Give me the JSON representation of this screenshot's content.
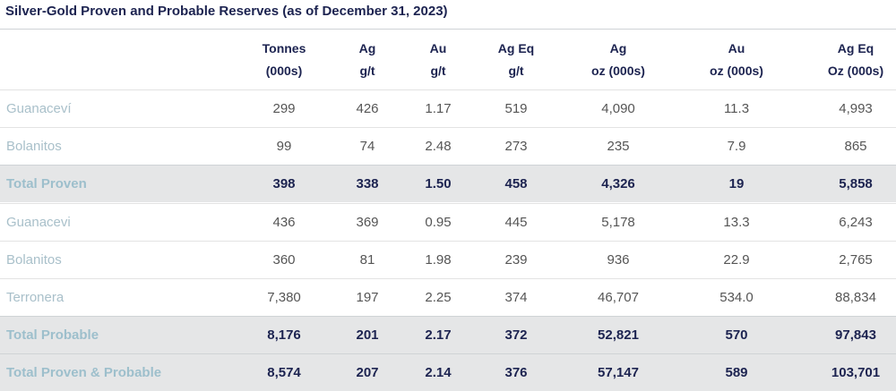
{
  "title": "Silver-Gold Proven and Probable Reserves (as of December 31, 2023)",
  "table": {
    "header": [
      [
        "Tonnes",
        "(000s)"
      ],
      [
        "Ag",
        "g/t"
      ],
      [
        "Au",
        "g/t"
      ],
      [
        "Ag Eq",
        "g/t"
      ],
      [
        "Ag",
        "oz (000s)"
      ],
      [
        "Au",
        "oz (000s)"
      ],
      [
        "Ag Eq",
        "Oz (000s)"
      ]
    ],
    "rows": [
      {
        "label": "Guanaceví",
        "total": false,
        "cells": [
          "299",
          "426",
          "1.17",
          "519",
          "4,090",
          "11.3",
          "4,993"
        ]
      },
      {
        "label": "Bolanitos",
        "total": false,
        "cells": [
          "99",
          "74",
          "2.48",
          "273",
          "235",
          "7.9",
          "865"
        ]
      },
      {
        "label": "Total Proven",
        "total": true,
        "cells": [
          "398",
          "338",
          "1.50",
          "458",
          "4,326",
          "19",
          "5,858"
        ]
      },
      {
        "label": "Guanacevi",
        "total": false,
        "cells": [
          "436",
          "369",
          "0.95",
          "445",
          "5,178",
          "13.3",
          "6,243"
        ]
      },
      {
        "label": "Bolanitos",
        "total": false,
        "cells": [
          "360",
          "81",
          "1.98",
          "239",
          "936",
          "22.9",
          "2,765"
        ]
      },
      {
        "label": "Terronera",
        "total": false,
        "cells": [
          "7,380",
          "197",
          "2.25",
          "374",
          "46,707",
          "534.0",
          "88,834"
        ]
      },
      {
        "label": "Total Probable",
        "total": true,
        "cells": [
          "8,176",
          "201",
          "2.17",
          "372",
          "52,821",
          "570",
          "97,843"
        ]
      },
      {
        "label": "Total Proven & Probable",
        "total": true,
        "cells": [
          "8,574",
          "207",
          "2.14",
          "376",
          "57,147",
          "589",
          "103,701"
        ]
      }
    ]
  }
}
